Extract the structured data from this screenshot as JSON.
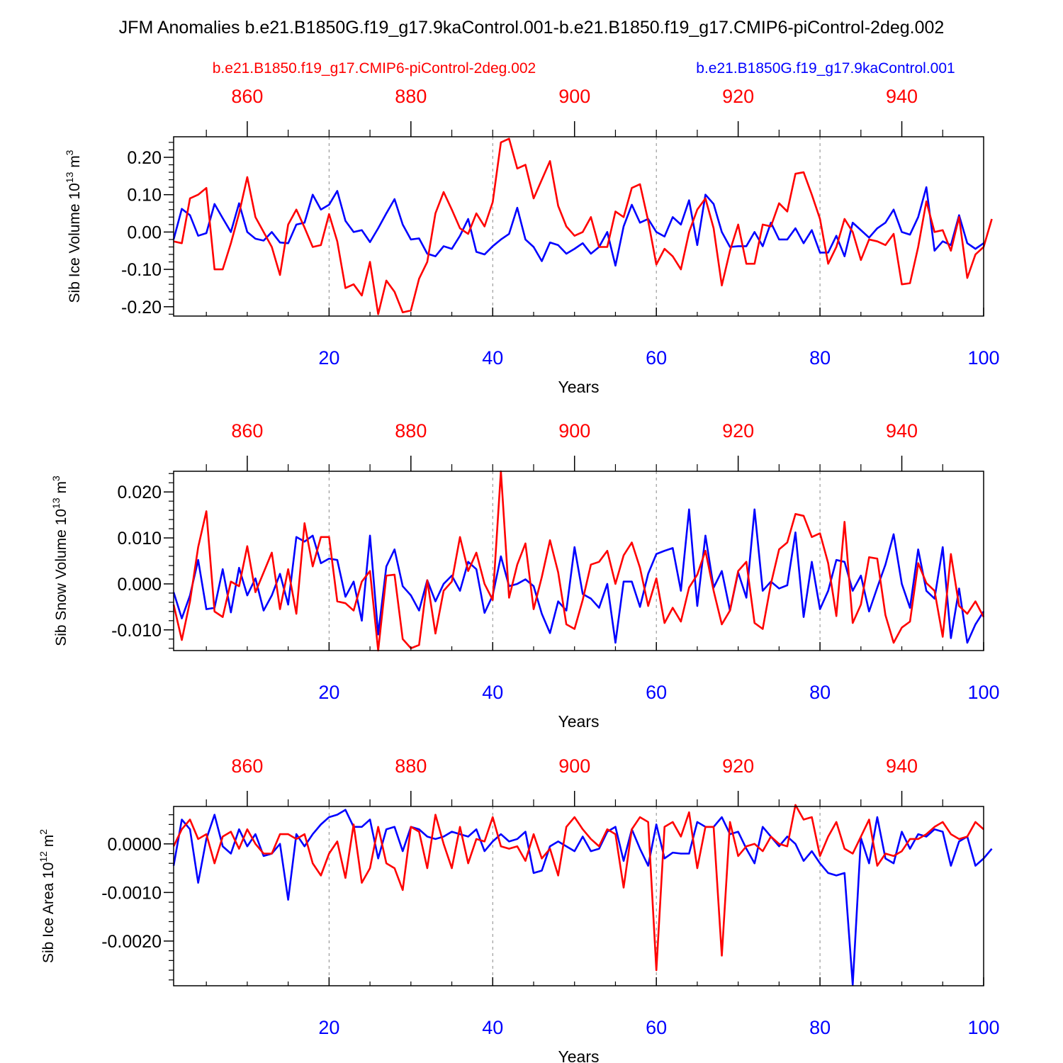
{
  "title": "JFM Anomalies b.e21.B1850G.f19_g17.9kaControl.001-b.e21.B1850.f19_g17.CMIP6-piControl-2deg.002",
  "legend": {
    "red_label": "b.e21.B1850.f19_g17.CMIP6-piControl-2deg.002",
    "blue_label": "b.e21.B1850G.f19_g17.9kaControl.001"
  },
  "colors": {
    "red": "#ff0000",
    "blue": "#0000ff",
    "grid": "#888888",
    "axis": "#000000"
  },
  "chart_data": [
    {
      "type": "line",
      "ylabel_main": "Sib Ice Volume 10",
      "ylabel_sup": "13",
      "ylabel_unit": " m",
      "ylabel_unit_sup": "3",
      "xlabel": "Years",
      "xlim": [
        1,
        100
      ],
      "ylim": [
        -0.225,
        0.255
      ],
      "x_ticks": [
        20,
        40,
        60,
        80,
        100
      ],
      "x_tick_labels": [
        "20",
        "40",
        "60",
        "80",
        "100"
      ],
      "top_x_ticks": [
        10,
        30,
        50,
        70,
        90
      ],
      "top_x_tick_labels": [
        "860",
        "880",
        "900",
        "920",
        "940"
      ],
      "y_ticks": [
        -0.2,
        -0.1,
        0.0,
        0.1,
        0.2
      ],
      "y_tick_labels": [
        "-0.20",
        "-0.10",
        "0.00",
        "0.10",
        "0.20"
      ],
      "series": [
        {
          "name": "b.e21.B1850G.f19_g17.9kaControl.001",
          "color": "blue",
          "values": [
            -0.02,
            0.062,
            0.045,
            -0.01,
            -0.003,
            0.075,
            0.037,
            0.0,
            0.077,
            0.0,
            -0.018,
            -0.023,
            0.0,
            -0.028,
            -0.03,
            0.02,
            0.025,
            0.1,
            0.06,
            0.073,
            0.11,
            0.03,
            0.0,
            0.005,
            -0.027,
            0.01,
            0.05,
            0.088,
            0.02,
            -0.02,
            -0.017,
            -0.058,
            -0.065,
            -0.038,
            -0.045,
            -0.01,
            0.035,
            -0.053,
            -0.06,
            -0.038,
            -0.02,
            -0.005,
            0.065,
            -0.02,
            -0.04,
            -0.078,
            -0.028,
            -0.035,
            -0.058,
            -0.045,
            -0.03,
            -0.058,
            -0.04,
            0.0,
            -0.09,
            0.015,
            0.073,
            0.025,
            0.035,
            0.0,
            -0.012,
            0.04,
            0.02,
            0.085,
            -0.035,
            0.1,
            0.075,
            0.0,
            -0.04,
            -0.038,
            -0.038,
            0.0,
            -0.038,
            0.025,
            -0.02,
            -0.02,
            0.01,
            -0.03,
            0.005,
            -0.055,
            -0.055,
            -0.01,
            -0.065,
            0.025,
            0.005,
            -0.015,
            0.01,
            0.025,
            0.06,
            0.0,
            -0.007,
            0.04,
            0.12,
            -0.05,
            -0.025,
            -0.035,
            0.045,
            -0.03,
            -0.045,
            -0.03
          ]
        },
        {
          "name": "b.e21.B1850.f19_g17.CMIP6-piControl-2deg.002",
          "color": "red",
          "values": [
            -0.025,
            -0.03,
            0.09,
            0.1,
            0.118,
            -0.1,
            -0.1,
            -0.03,
            0.05,
            0.147,
            0.04,
            0.0,
            -0.04,
            -0.115,
            0.02,
            0.06,
            0.012,
            -0.04,
            -0.035,
            0.048,
            -0.025,
            -0.15,
            -0.14,
            -0.17,
            -0.08,
            -0.22,
            -0.13,
            -0.16,
            -0.215,
            -0.21,
            -0.125,
            -0.08,
            0.05,
            0.107,
            0.06,
            0.01,
            -0.005,
            0.05,
            0.015,
            0.08,
            0.24,
            0.25,
            0.17,
            0.18,
            0.09,
            0.14,
            0.19,
            0.07,
            0.015,
            -0.01,
            0.0,
            0.04,
            -0.04,
            -0.04,
            0.055,
            0.04,
            0.118,
            0.128,
            0.03,
            -0.087,
            -0.045,
            -0.065,
            -0.1,
            0.0,
            0.06,
            0.09,
            0.01,
            -0.143,
            -0.05,
            0.02,
            -0.085,
            -0.085,
            0.02,
            0.015,
            0.077,
            0.055,
            0.156,
            0.16,
            0.1,
            0.035,
            -0.085,
            -0.04,
            0.035,
            0.0,
            -0.075,
            -0.02,
            -0.025,
            -0.035,
            -0.005,
            -0.14,
            -0.137,
            -0.04,
            0.082,
            0.0,
            0.005,
            -0.05,
            0.04,
            -0.123,
            -0.06,
            -0.04,
            0.035
          ]
        }
      ]
    },
    {
      "type": "line",
      "ylabel_main": "Sib Snow Volume 10",
      "ylabel_sup": "13",
      "ylabel_unit": " m",
      "ylabel_unit_sup": "3",
      "xlabel": "Years",
      "xlim": [
        1,
        100
      ],
      "ylim": [
        -0.0145,
        0.0245
      ],
      "x_ticks": [
        20,
        40,
        60,
        80,
        100
      ],
      "x_tick_labels": [
        "20",
        "40",
        "60",
        "80",
        "100"
      ],
      "top_x_ticks": [
        10,
        30,
        50,
        70,
        90
      ],
      "top_x_tick_labels": [
        "860",
        "880",
        "900",
        "920",
        "940"
      ],
      "y_ticks": [
        -0.01,
        0.0,
        0.01,
        0.02
      ],
      "y_tick_labels": [
        "-0.010",
        "0.000",
        "0.010",
        "0.020"
      ],
      "series": [
        {
          "name": "b.e21.B1850G.f19_g17.9kaControl.001",
          "color": "blue",
          "values": [
            -0.0018,
            -0.0075,
            -0.0025,
            0.0052,
            -0.0055,
            -0.0052,
            0.0032,
            -0.0062,
            0.0035,
            -0.0025,
            0.0012,
            -0.0058,
            -0.0025,
            0.0022,
            -0.0045,
            0.0102,
            0.0092,
            0.0105,
            0.0045,
            0.0055,
            0.0052,
            -0.0028,
            0.0005,
            -0.008,
            0.0105,
            -0.011,
            0.0038,
            0.0075,
            -0.0005,
            -0.0025,
            -0.0058,
            0.0008,
            -0.0038,
            0.0,
            0.0018,
            -0.0015,
            0.0048,
            0.0032,
            -0.0063,
            -0.0025,
            0.006,
            -0.0005,
            0.0,
            0.001,
            -0.0005,
            -0.0065,
            -0.0107,
            -0.0038,
            -0.0058,
            0.008,
            -0.0022,
            -0.0032,
            -0.0052,
            0.0,
            -0.0128,
            0.0005,
            0.0005,
            -0.005,
            0.0022,
            0.0065,
            0.0072,
            0.0078,
            -0.0015,
            0.0162,
            -0.0048,
            0.0105,
            -0.0008,
            0.0028,
            -0.0058,
            0.0025,
            -0.003,
            0.0162,
            -0.0015,
            0.0005,
            -0.001,
            -0.0003,
            0.0112,
            -0.0072,
            0.0048,
            -0.0055,
            -0.0015,
            0.0052,
            0.0048,
            -0.0015,
            0.0018,
            -0.006,
            -0.0008,
            0.0042,
            0.0108,
            0.0,
            -0.0052,
            0.0075,
            -0.0015,
            -0.0032,
            0.008,
            -0.0118,
            -0.001,
            -0.0128,
            -0.0088,
            -0.006
          ]
        },
        {
          "name": "b.e21.B1850.f19_g17.CMIP6-piControl-2deg.002",
          "color": "red",
          "values": [
            -0.0045,
            -0.0122,
            -0.0038,
            0.008,
            0.0158,
            -0.006,
            -0.0072,
            0.0005,
            -0.0005,
            0.0082,
            -0.0018,
            0.0025,
            0.0068,
            -0.0055,
            0.0032,
            -0.0065,
            0.0132,
            0.0038,
            0.0102,
            0.0102,
            -0.0038,
            -0.0042,
            -0.0058,
            0.0005,
            0.0028,
            -0.0145,
            0.0018,
            0.002,
            -0.012,
            -0.014,
            -0.0133,
            0.0008,
            -0.0108,
            -0.0015,
            0.0005,
            0.0102,
            0.0028,
            0.0068,
            0.0,
            -0.0035,
            0.0245,
            -0.003,
            0.0042,
            0.0088,
            -0.0055,
            0.0015,
            0.0095,
            0.0025,
            -0.0088,
            -0.0098,
            -0.0035,
            0.0042,
            0.0048,
            0.0072,
            0.0,
            0.0062,
            0.009,
            0.0035,
            -0.0048,
            0.0012,
            -0.0085,
            -0.0052,
            -0.0082,
            -0.0008,
            0.002,
            0.0072,
            -0.0015,
            -0.0088,
            -0.0058,
            0.0028,
            0.0048,
            -0.0085,
            -0.0098,
            0.0,
            0.0075,
            0.009,
            0.0152,
            0.0148,
            0.0102,
            0.011,
            0.0045,
            -0.007,
            0.0135,
            -0.0085,
            -0.0045,
            0.0058,
            0.0055,
            -0.0068,
            -0.0128,
            -0.0095,
            -0.0082,
            0.0045,
            0.0002,
            -0.0015,
            -0.0115,
            0.0065,
            -0.0048,
            -0.0065,
            -0.0038,
            -0.0072
          ]
        }
      ]
    },
    {
      "type": "line",
      "ylabel_main": "Sib Ice Area 10",
      "ylabel_sup": "12",
      "ylabel_unit": " m",
      "ylabel_unit_sup": "2",
      "xlabel": "Years",
      "xlim": [
        1,
        100
      ],
      "ylim": [
        -0.00292,
        0.00077
      ],
      "x_ticks": [
        20,
        40,
        60,
        80,
        100
      ],
      "x_tick_labels": [
        "20",
        "40",
        "60",
        "80",
        "100"
      ],
      "top_x_ticks": [
        10,
        30,
        50,
        70,
        90
      ],
      "top_x_tick_labels": [
        "860",
        "880",
        "900",
        "920",
        "940"
      ],
      "y_ticks": [
        -0.002,
        -0.001,
        0.0
      ],
      "y_tick_labels": [
        "-0.0020",
        "-0.0010",
        "0.0000"
      ],
      "series": [
        {
          "name": "b.e21.B1850G.f19_g17.9kaControl.001",
          "color": "blue",
          "values": [
            -0.00045,
            0.0005,
            0.0003,
            -0.0008,
            0.0001,
            0.0006,
            -5e-05,
            -0.0002,
            0.0003,
            -5e-05,
            0.0002,
            -0.00025,
            -0.0002,
            0.0,
            -0.00115,
            0.0002,
            -5e-05,
            0.0002,
            0.0004,
            0.00055,
            0.0006,
            0.0007,
            0.00035,
            0.00035,
            0.0005,
            -0.0003,
            0.0003,
            0.00035,
            -0.00015,
            0.00035,
            0.0003,
            0.00015,
            0.0001,
            0.00015,
            0.00025,
            0.0002,
            0.00015,
            0.0003,
            -0.00015,
            5e-05,
            0.0002,
            5e-05,
            0.0001,
            0.00025,
            -0.0006,
            -0.00055,
            -5e-05,
            5e-05,
            -5e-05,
            -0.00015,
            0.00015,
            -0.00015,
            -0.0001,
            0.00025,
            0.00035,
            -0.00035,
            0.0003,
            -0.0001,
            -0.00045,
            0.0004,
            -0.0003,
            -0.00018,
            -0.0002,
            -0.0002,
            0.00045,
            0.00035,
            0.00035,
            0.00055,
            0.0002,
            0.00025,
            -0.0001,
            -0.0004,
            0.00035,
            0.00015,
            -5e-05,
            0.00015,
            0.0,
            -0.00035,
            -0.00015,
            -0.0004,
            -0.0006,
            -0.00065,
            -0.0006,
            -0.0029,
            0.00012,
            -0.0004,
            0.00055,
            -0.0003,
            -0.0004,
            0.00025,
            -0.0001,
            0.0002,
            0.00015,
            0.0003,
            0.00025,
            -0.00045,
            5e-05,
            0.00015,
            -0.00045,
            -0.0003,
            -0.0001
          ]
        },
        {
          "name": "b.e21.B1850.f19_g17.CMIP6-piControl-2deg.002",
          "color": "red",
          "values": [
            -5e-05,
            0.0003,
            0.0005,
            0.0001,
            0.0002,
            -0.0004,
            0.00015,
            0.00025,
            -0.0001,
            0.0003,
            0.0,
            -0.0002,
            -0.0002,
            0.0002,
            0.0002,
            0.0001,
            0.0002,
            -0.0004,
            -0.00065,
            -0.0002,
            5e-05,
            -0.0007,
            0.0004,
            -0.0008,
            -0.0005,
            0.00035,
            -0.0004,
            -0.0005,
            -0.00095,
            0.00035,
            0.00025,
            -0.0005,
            0.0006,
            0.0,
            -0.0005,
            0.00035,
            -0.0004,
            0.0001,
            5e-05,
            0.00055,
            -5e-05,
            -0.0001,
            -5e-05,
            -0.00035,
            0.0002,
            -0.0003,
            -0.0001,
            -0.00065,
            0.00035,
            0.00055,
            0.0003,
            0.0001,
            -5e-05,
            0.0003,
            0.0002,
            -0.0009,
            0.0003,
            0.00055,
            0.00045,
            -0.0026,
            0.00035,
            0.00045,
            0.00015,
            0.00065,
            -0.0005,
            0.00035,
            0.00035,
            -0.0023,
            0.00045,
            -0.00025,
            -5e-05,
            0.0,
            -0.00015,
            0.00015,
            0.0,
            -5e-05,
            0.0008,
            0.0005,
            0.00055,
            -0.00025,
            0.00015,
            0.00045,
            -0.0001,
            -0.0002,
            0.00015,
            0.0005,
            -0.00045,
            -0.0002,
            -0.00025,
            -0.00015,
            0.0001,
            0.0001,
            0.0002,
            0.00035,
            0.00045,
            0.0002,
            0.0001,
            0.00015,
            0.00045,
            0.0003
          ]
        }
      ]
    }
  ]
}
